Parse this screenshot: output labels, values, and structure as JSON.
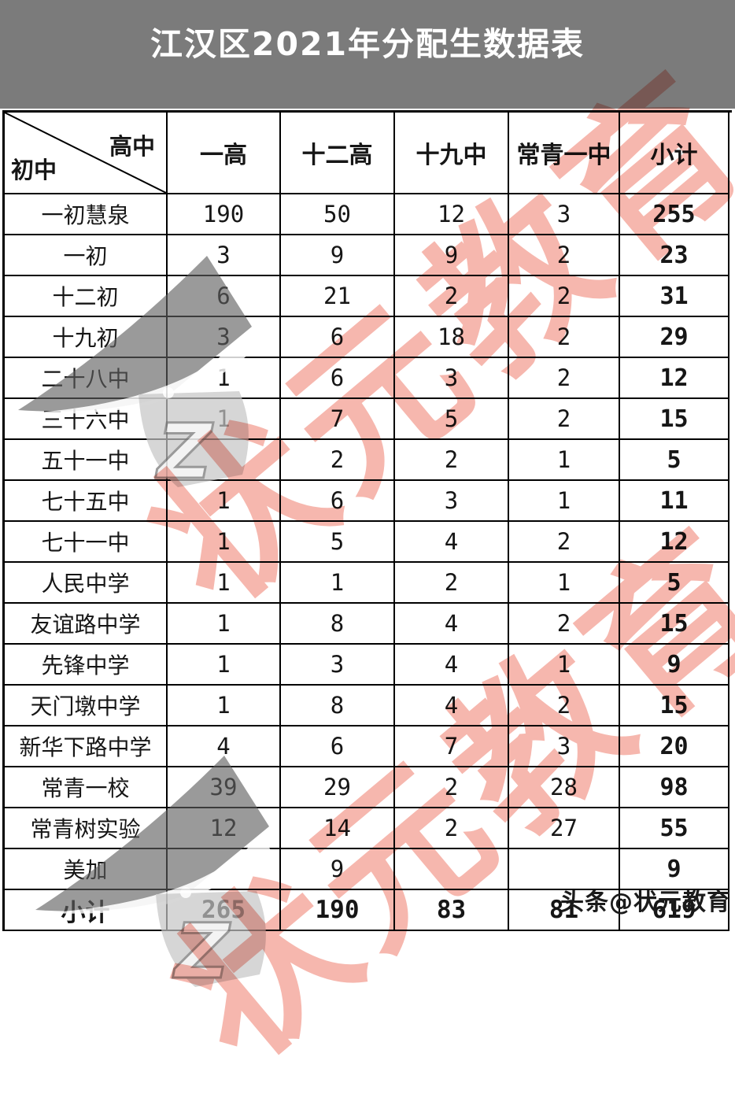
{
  "chart_data": {
    "type": "table",
    "title": "江汉区2021年分配生数据表",
    "corner": {
      "top_right": "高中",
      "bottom_left": "初中"
    },
    "columns": [
      "一高",
      "十二高",
      "十九中",
      "常青一中",
      "小计"
    ],
    "rows": [
      {
        "label": "一初慧泉",
        "values": [
          "190",
          "50",
          "12",
          "3",
          "255"
        ]
      },
      {
        "label": "一初",
        "values": [
          "3",
          "9",
          "9",
          "2",
          "23"
        ]
      },
      {
        "label": "十二初",
        "values": [
          "6",
          "21",
          "2",
          "2",
          "31"
        ]
      },
      {
        "label": "十九初",
        "values": [
          "3",
          "6",
          "18",
          "2",
          "29"
        ]
      },
      {
        "label": "二十八中",
        "values": [
          "1",
          "6",
          "3",
          "2",
          "12"
        ]
      },
      {
        "label": "三十六中",
        "values": [
          "1",
          "7",
          "5",
          "2",
          "15"
        ]
      },
      {
        "label": "五十一中",
        "values": [
          "",
          "2",
          "2",
          "1",
          "5"
        ]
      },
      {
        "label": "七十五中",
        "values": [
          "1",
          "6",
          "3",
          "1",
          "11"
        ]
      },
      {
        "label": "七十一中",
        "values": [
          "1",
          "5",
          "4",
          "2",
          "12"
        ]
      },
      {
        "label": "人民中学",
        "values": [
          "1",
          "1",
          "2",
          "1",
          "5"
        ]
      },
      {
        "label": "友谊路中学",
        "values": [
          "1",
          "8",
          "4",
          "2",
          "15"
        ]
      },
      {
        "label": "先锋中学",
        "values": [
          "1",
          "3",
          "4",
          "1",
          "9"
        ]
      },
      {
        "label": "天门墩中学",
        "values": [
          "1",
          "8",
          "4",
          "2",
          "15"
        ]
      },
      {
        "label": "新华下路中学",
        "values": [
          "4",
          "6",
          "7",
          "3",
          "20"
        ]
      },
      {
        "label": "常青一校",
        "values": [
          "39",
          "29",
          "2",
          "28",
          "98"
        ]
      },
      {
        "label": "常青树实验",
        "values": [
          "12",
          "14",
          "2",
          "27",
          "55"
        ]
      },
      {
        "label": "美加",
        "values": [
          "",
          "9",
          "",
          "",
          "9"
        ]
      },
      {
        "label": "小计",
        "values": [
          "265",
          "190",
          "83",
          "81",
          "619"
        ],
        "is_total": true
      }
    ]
  },
  "watermarks": {
    "diagonal_text": "状元教育",
    "badge_text": "头条@状元教育",
    "logo": "graduation-cap-with-z"
  },
  "colors": {
    "banner_bg": "#7b7b7b",
    "banner_fg": "#ffffff",
    "watermark_red": "#ef8373",
    "grid": "#000000"
  }
}
